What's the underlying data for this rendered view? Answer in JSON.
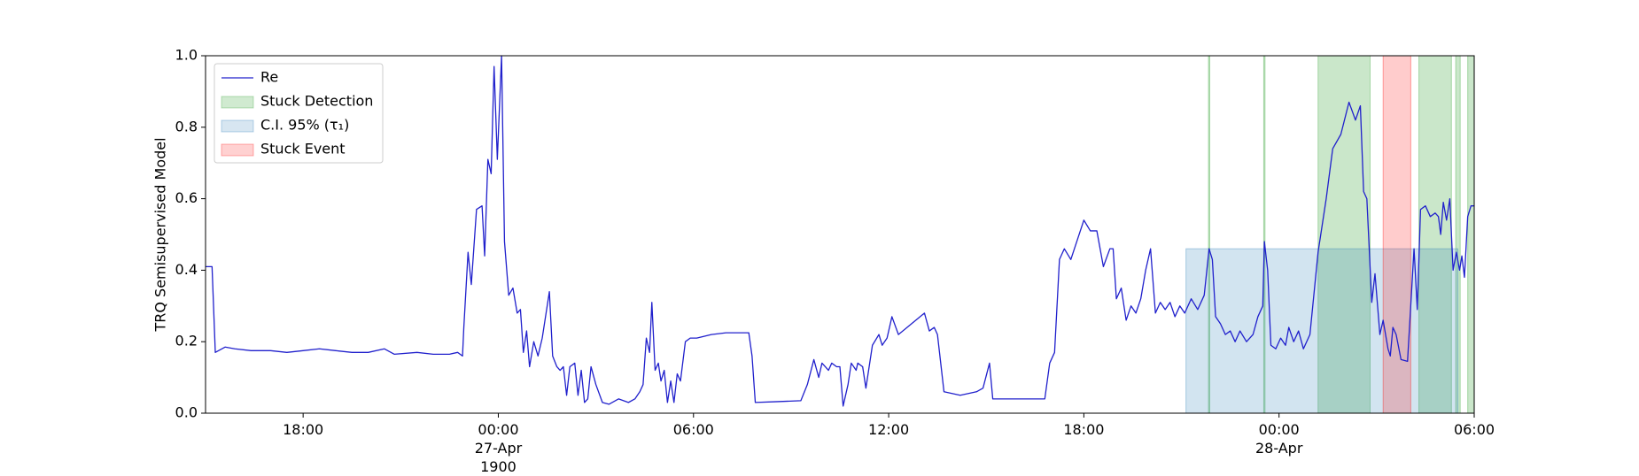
{
  "chart_data": {
    "type": "line",
    "ylabel": "TRQ Semisupervised Model",
    "xlim": [
      -9,
      30
    ],
    "ylim": [
      0,
      1
    ],
    "xticks": [
      {
        "value": -6,
        "label": "18:00"
      },
      {
        "value": 0,
        "label": "00:00\n27-Apr\n1900"
      },
      {
        "value": 6,
        "label": "06:00"
      },
      {
        "value": 12,
        "label": "12:00"
      },
      {
        "value": 18,
        "label": "18:00"
      },
      {
        "value": 24,
        "label": "00:00\n28-Apr"
      },
      {
        "value": 30,
        "label": "06:00"
      }
    ],
    "yticks": [
      {
        "value": 0,
        "label": "0.0"
      },
      0.2,
      0.4,
      0.6,
      0.8,
      {
        "value": 1,
        "label": "1.0"
      }
    ],
    "legend": "upper left",
    "x": [
      -9,
      -8.8,
      -8.7,
      -8.4,
      -8.1,
      -7.6,
      -7,
      -6.5,
      -6,
      -5.5,
      -5,
      -4.5,
      -4,
      -3.5,
      -3.2,
      -2.5,
      -2,
      -1.5,
      -1.25,
      -1.1,
      -1.06,
      -0.93,
      -0.83,
      -0.67,
      -0.5,
      -0.42,
      -0.32,
      -0.22,
      -0.13,
      -0.03,
      0.1,
      0.19,
      0.32,
      0.45,
      0.58,
      0.68,
      0.77,
      0.87,
      0.96,
      1.09,
      1.22,
      1.35,
      1.57,
      1.67,
      1.8,
      1.9,
      2,
      2.1,
      2.2,
      2.35,
      2.45,
      2.55,
      2.65,
      2.75,
      2.85,
      3,
      3.2,
      3.4,
      3.7,
      4,
      4.2,
      4.35,
      4.45,
      4.55,
      4.65,
      4.72,
      4.82,
      4.92,
      5,
      5.1,
      5.2,
      5.3,
      5.4,
      5.5,
      5.6,
      5.75,
      5.9,
      6.1,
      6.55,
      7,
      7.7,
      7.8,
      7.9,
      8.5,
      9.3,
      9.5,
      9.7,
      9.85,
      9.95,
      10.05,
      10.15,
      10.25,
      10.4,
      10.5,
      10.6,
      10.75,
      10.85,
      11,
      11.05,
      11.2,
      11.3,
      11.5,
      11.7,
      11.8,
      11.95,
      12.1,
      12.3,
      12.7,
      13.1,
      13.25,
      13.4,
      13.5,
      13.7,
      14.2,
      14.7,
      14.9,
      15.1,
      15.2,
      16,
      16.8,
      16.95,
      17.1,
      17.25,
      17.4,
      17.6,
      18,
      18.2,
      18.4,
      18.6,
      18.8,
      18.9,
      19,
      19.15,
      19.3,
      19.45,
      19.6,
      19.75,
      19.9,
      20.05,
      20.2,
      20.35,
      20.5,
      20.65,
      20.8,
      20.95,
      21.1,
      21.3,
      21.5,
      21.7,
      21.85,
      21.95,
      22.05,
      22.2,
      22.35,
      22.5,
      22.65,
      22.8,
      23,
      23.2,
      23.35,
      23.5,
      23.55,
      23.65,
      23.75,
      23.9,
      24.05,
      24.2,
      24.3,
      24.45,
      24.6,
      24.75,
      24.95,
      25.2,
      25.45,
      25.65,
      25.9,
      26.15,
      26.35,
      26.5,
      26.6,
      26.7,
      26.85,
      26.95,
      27.1,
      27.2,
      27.35,
      27.42,
      27.5,
      27.6,
      27.75,
      27.95,
      28.15,
      28.25,
      28.35,
      28.5,
      28.65,
      28.8,
      28.9,
      28.97,
      29.05,
      29.15,
      29.25,
      29.35,
      29.45,
      29.55,
      29.62,
      29.7,
      29.8,
      29.9,
      30
    ],
    "series": [
      {
        "name": "Re",
        "color": "#2020cc",
        "values": [
          0.41,
          0.41,
          0.17,
          0.185,
          0.18,
          0.175,
          0.175,
          0.17,
          0.175,
          0.18,
          0.175,
          0.17,
          0.17,
          0.18,
          0.165,
          0.17,
          0.165,
          0.165,
          0.17,
          0.16,
          0.24,
          0.45,
          0.36,
          0.57,
          0.58,
          0.44,
          0.71,
          0.67,
          0.97,
          0.71,
          1.0,
          0.48,
          0.33,
          0.35,
          0.28,
          0.29,
          0.17,
          0.23,
          0.13,
          0.2,
          0.16,
          0.21,
          0.34,
          0.16,
          0.13,
          0.12,
          0.13,
          0.05,
          0.13,
          0.14,
          0.05,
          0.12,
          0.03,
          0.04,
          0.13,
          0.08,
          0.03,
          0.025,
          0.04,
          0.03,
          0.04,
          0.06,
          0.08,
          0.21,
          0.17,
          0.31,
          0.12,
          0.14,
          0.09,
          0.12,
          0.03,
          0.09,
          0.03,
          0.11,
          0.09,
          0.2,
          0.21,
          0.21,
          0.22,
          0.225,
          0.225,
          0.16,
          0.03,
          0.032,
          0.035,
          0.08,
          0.15,
          0.1,
          0.14,
          0.13,
          0.12,
          0.14,
          0.13,
          0.13,
          0.02,
          0.08,
          0.14,
          0.12,
          0.14,
          0.13,
          0.07,
          0.19,
          0.22,
          0.19,
          0.21,
          0.27,
          0.22,
          0.25,
          0.28,
          0.23,
          0.24,
          0.22,
          0.06,
          0.05,
          0.06,
          0.07,
          0.14,
          0.04,
          0.04,
          0.04,
          0.14,
          0.17,
          0.43,
          0.46,
          0.43,
          0.54,
          0.51,
          0.51,
          0.41,
          0.46,
          0.46,
          0.32,
          0.35,
          0.26,
          0.3,
          0.28,
          0.32,
          0.4,
          0.46,
          0.28,
          0.31,
          0.29,
          0.31,
          0.27,
          0.3,
          0.28,
          0.32,
          0.29,
          0.33,
          0.46,
          0.43,
          0.27,
          0.25,
          0.22,
          0.23,
          0.2,
          0.23,
          0.2,
          0.22,
          0.27,
          0.3,
          0.48,
          0.4,
          0.19,
          0.18,
          0.21,
          0.19,
          0.24,
          0.2,
          0.23,
          0.18,
          0.22,
          0.45,
          0.6,
          0.74,
          0.78,
          0.87,
          0.82,
          0.86,
          0.62,
          0.6,
          0.31,
          0.39,
          0.22,
          0.26,
          0.18,
          0.16,
          0.24,
          0.22,
          0.15,
          0.145,
          0.46,
          0.29,
          0.57,
          0.58,
          0.55,
          0.56,
          0.55,
          0.5,
          0.59,
          0.54,
          0.6,
          0.4,
          0.45,
          0.4,
          0.44,
          0.38,
          0.55,
          0.58,
          0.58
        ]
      }
    ],
    "regions": [
      {
        "name": "Stuck Detection",
        "color": "#2ca02c",
        "spans": [
          [
            21.83,
            21.87
          ],
          [
            23.53,
            23.57
          ],
          [
            25.2,
            26.8
          ],
          [
            28.3,
            29.3
          ],
          [
            29.43,
            29.57
          ],
          [
            29.8,
            30
          ]
        ]
      },
      {
        "name": "C.I. 95% (τ₁)",
        "color": "#1f77b4",
        "spans": [
          [
            21.14,
            29.5
          ]
        ],
        "ymax": 0.46
      },
      {
        "name": "Stuck Event",
        "color": "#ff0000",
        "spans": [
          [
            27.2,
            28.05
          ]
        ]
      }
    ]
  }
}
